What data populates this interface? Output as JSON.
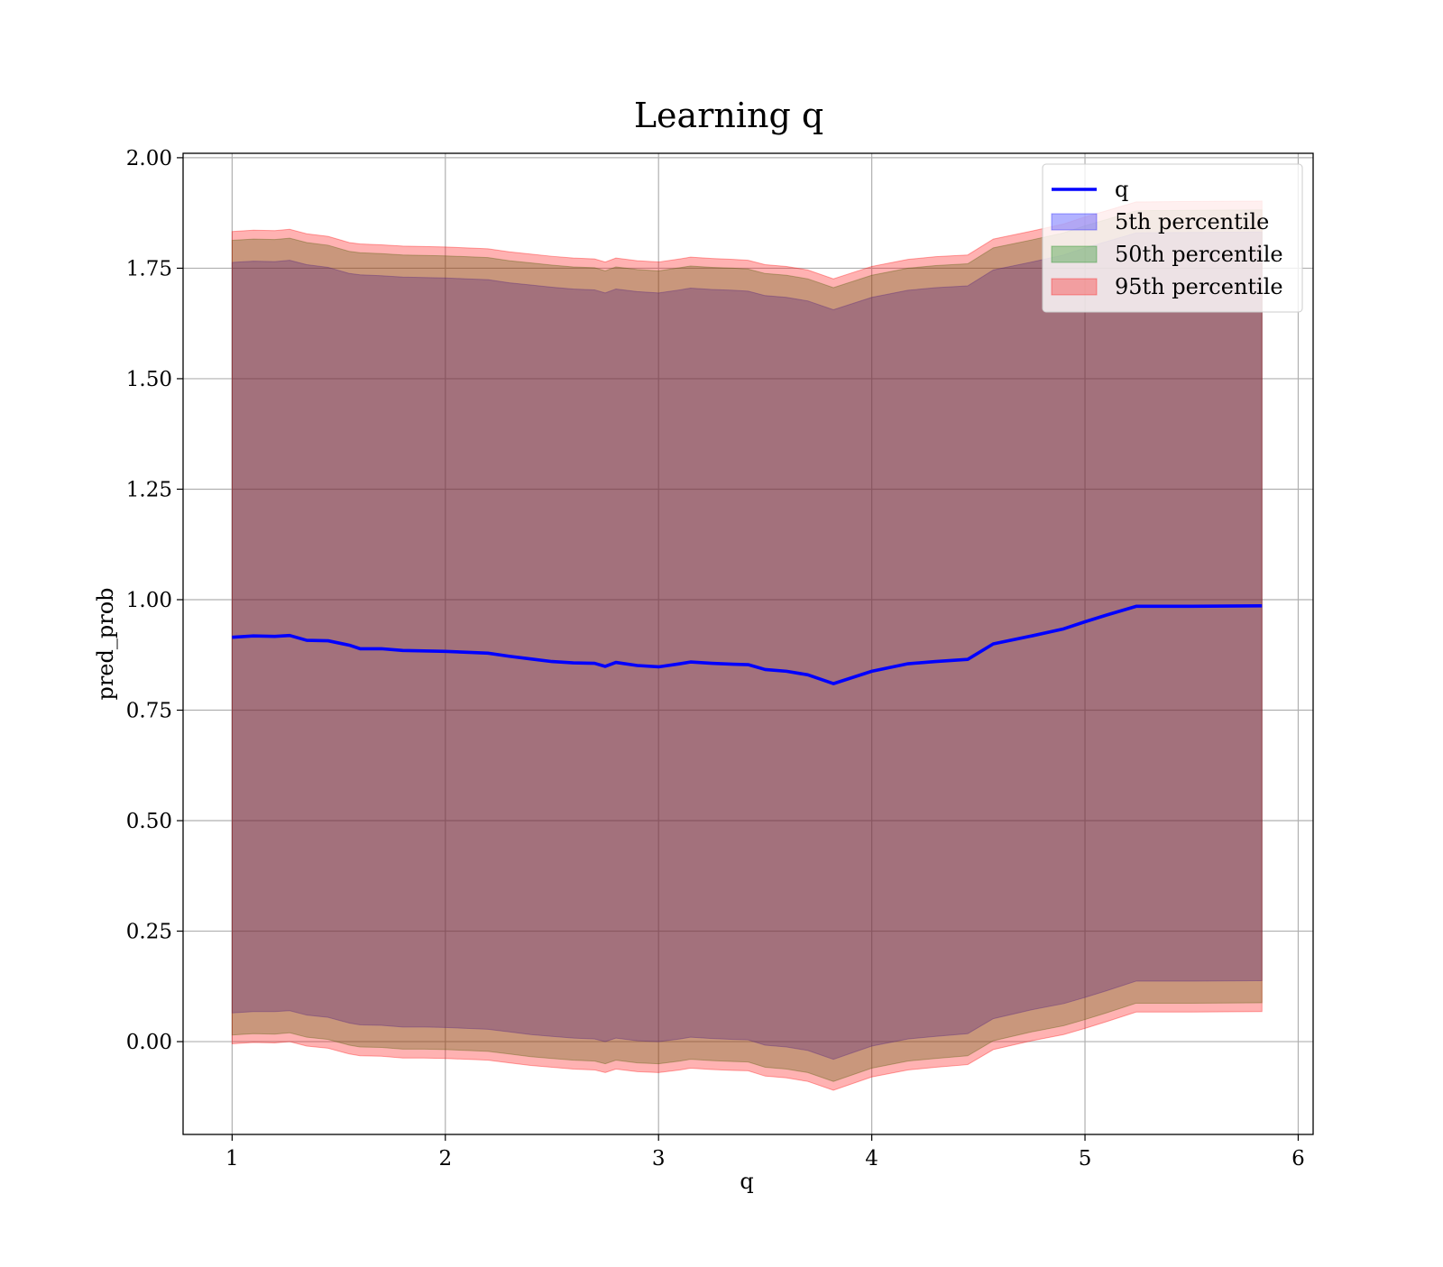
{
  "chart_data": {
    "type": "area",
    "title": "Learning q",
    "xlabel": "q",
    "ylabel": "pred_prob",
    "xlim": [
      0.77,
      6.07
    ],
    "ylim": [
      -0.21,
      2.01
    ],
    "x_ticks": [
      1,
      2,
      3,
      4,
      5,
      6
    ],
    "x_tick_labels": [
      "1",
      "2",
      "3",
      "4",
      "5",
      "6"
    ],
    "y_ticks": [
      0.0,
      0.25,
      0.5,
      0.75,
      1.0,
      1.25,
      1.5,
      1.75,
      2.0
    ],
    "y_tick_labels": [
      "0.00",
      "0.25",
      "0.50",
      "0.75",
      "1.00",
      "1.25",
      "1.50",
      "1.75",
      "2.00"
    ],
    "grid": true,
    "legend_position": "top-right",
    "x": [
      1.0,
      1.1,
      1.2,
      1.27,
      1.35,
      1.45,
      1.55,
      1.6,
      1.7,
      1.8,
      1.9,
      2.0,
      2.1,
      2.2,
      2.3,
      2.4,
      2.5,
      2.6,
      2.7,
      2.75,
      2.8,
      2.9,
      3.0,
      3.1,
      3.15,
      3.25,
      3.35,
      3.42,
      3.5,
      3.6,
      3.7,
      3.82,
      4.0,
      4.17,
      4.3,
      4.45,
      4.57,
      4.75,
      4.9,
      5.0,
      5.1,
      5.24,
      5.5,
      5.83
    ],
    "series": [
      {
        "name": "q",
        "kind": "line",
        "color": "#0000ff",
        "values": [
          0.915,
          0.918,
          0.917,
          0.919,
          0.908,
          0.907,
          0.897,
          0.889,
          0.889,
          0.885,
          0.884,
          0.883,
          0.881,
          0.879,
          0.872,
          0.866,
          0.86,
          0.857,
          0.856,
          0.849,
          0.858,
          0.851,
          0.848,
          0.855,
          0.859,
          0.856,
          0.854,
          0.853,
          0.842,
          0.838,
          0.83,
          0.81,
          0.838,
          0.855,
          0.86,
          0.865,
          0.9,
          0.918,
          0.934,
          0.95,
          0.965,
          0.985,
          0.985,
          0.986
        ]
      },
      {
        "name": "5th percentile",
        "kind": "band",
        "color": "#0000ff",
        "lower": [
          0.065,
          0.068,
          0.068,
          0.07,
          0.06,
          0.055,
          0.042,
          0.038,
          0.037,
          0.033,
          0.033,
          0.032,
          0.03,
          0.028,
          0.022,
          0.016,
          0.012,
          0.008,
          0.006,
          0.0,
          0.008,
          0.002,
          0.0,
          0.006,
          0.01,
          0.007,
          0.005,
          0.004,
          -0.008,
          -0.012,
          -0.02,
          -0.04,
          -0.01,
          0.006,
          0.012,
          0.018,
          0.052,
          0.072,
          0.086,
          0.1,
          0.115,
          0.137,
          0.137,
          0.138
        ],
        "upper": [
          1.763,
          1.766,
          1.765,
          1.768,
          1.758,
          1.752,
          1.738,
          1.735,
          1.733,
          1.73,
          1.729,
          1.728,
          1.726,
          1.724,
          1.717,
          1.712,
          1.707,
          1.703,
          1.701,
          1.694,
          1.703,
          1.697,
          1.694,
          1.701,
          1.705,
          1.702,
          1.7,
          1.698,
          1.688,
          1.684,
          1.676,
          1.656,
          1.684,
          1.7,
          1.706,
          1.71,
          1.746,
          1.764,
          1.78,
          1.796,
          1.81,
          1.83,
          1.831,
          1.832
        ]
      },
      {
        "name": "50th percentile",
        "kind": "band",
        "color": "#008000",
        "lower": [
          0.015,
          0.018,
          0.017,
          0.02,
          0.01,
          0.005,
          -0.008,
          -0.012,
          -0.013,
          -0.017,
          -0.017,
          -0.018,
          -0.02,
          -0.022,
          -0.028,
          -0.034,
          -0.038,
          -0.042,
          -0.044,
          -0.05,
          -0.042,
          -0.048,
          -0.05,
          -0.044,
          -0.04,
          -0.043,
          -0.045,
          -0.046,
          -0.058,
          -0.062,
          -0.07,
          -0.09,
          -0.06,
          -0.044,
          -0.038,
          -0.032,
          0.002,
          0.022,
          0.036,
          0.05,
          0.065,
          0.087,
          0.087,
          0.088
        ],
        "upper": [
          1.813,
          1.816,
          1.815,
          1.818,
          1.808,
          1.802,
          1.788,
          1.785,
          1.783,
          1.78,
          1.779,
          1.778,
          1.776,
          1.774,
          1.767,
          1.762,
          1.757,
          1.753,
          1.751,
          1.744,
          1.753,
          1.747,
          1.744,
          1.751,
          1.755,
          1.752,
          1.75,
          1.748,
          1.738,
          1.734,
          1.726,
          1.706,
          1.734,
          1.75,
          1.756,
          1.76,
          1.796,
          1.814,
          1.83,
          1.846,
          1.86,
          1.88,
          1.881,
          1.882
        ]
      },
      {
        "name": "95th percentile",
        "kind": "band",
        "color": "#ff0000",
        "lower": [
          -0.005,
          -0.002,
          -0.003,
          0.0,
          -0.01,
          -0.015,
          -0.028,
          -0.032,
          -0.033,
          -0.037,
          -0.037,
          -0.038,
          -0.04,
          -0.042,
          -0.048,
          -0.054,
          -0.058,
          -0.062,
          -0.064,
          -0.07,
          -0.062,
          -0.068,
          -0.07,
          -0.064,
          -0.06,
          -0.063,
          -0.065,
          -0.066,
          -0.078,
          -0.082,
          -0.09,
          -0.11,
          -0.08,
          -0.064,
          -0.058,
          -0.052,
          -0.018,
          0.002,
          0.016,
          0.03,
          0.045,
          0.067,
          0.067,
          0.068
        ],
        "upper": [
          1.833,
          1.836,
          1.835,
          1.838,
          1.828,
          1.822,
          1.808,
          1.805,
          1.803,
          1.8,
          1.799,
          1.798,
          1.796,
          1.794,
          1.787,
          1.782,
          1.777,
          1.773,
          1.771,
          1.764,
          1.773,
          1.767,
          1.764,
          1.771,
          1.775,
          1.772,
          1.77,
          1.768,
          1.758,
          1.754,
          1.746,
          1.726,
          1.754,
          1.77,
          1.776,
          1.78,
          1.816,
          1.834,
          1.85,
          1.866,
          1.88,
          1.9,
          1.901,
          1.902
        ]
      }
    ]
  }
}
